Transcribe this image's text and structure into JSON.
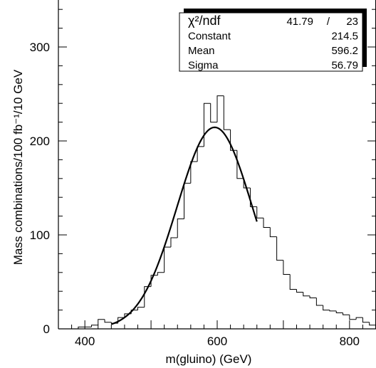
{
  "chart_data": {
    "type": "histogram",
    "title": "",
    "xlabel": "m(gluino) (GeV)",
    "ylabel": "Mass combinations/100 fb⁻¹/10 GeV",
    "xlim": [
      360,
      840
    ],
    "ylim": [
      0,
      350
    ],
    "x_ticks": [
      400,
      600,
      800
    ],
    "y_ticks": [
      0,
      100,
      200,
      300
    ],
    "x_tick_labels": [
      "400",
      "600",
      "800"
    ],
    "y_tick_labels": [
      "0",
      "100",
      "200",
      "300"
    ],
    "grid": false,
    "bin_width": 10,
    "bins_start": [
      360,
      370,
      380,
      390,
      400,
      410,
      420,
      430,
      440,
      450,
      460,
      470,
      480,
      490,
      500,
      510,
      520,
      530,
      540,
      550,
      560,
      570,
      580,
      590,
      600,
      610,
      620,
      630,
      640,
      650,
      660,
      670,
      680,
      690,
      700,
      710,
      720,
      730,
      740,
      750,
      760,
      770,
      780,
      790,
      800,
      810,
      820,
      830
    ],
    "counts": [
      0,
      0,
      0,
      2,
      2,
      4,
      10,
      7,
      6,
      12,
      16,
      20,
      23,
      45,
      57,
      60,
      87,
      97,
      117,
      155,
      178,
      194,
      240,
      220,
      248,
      212,
      190,
      160,
      150,
      130,
      118,
      108,
      98,
      73,
      58,
      42,
      39,
      35,
      33,
      25,
      20,
      19,
      17,
      15,
      10,
      12,
      7,
      4
    ],
    "fit": {
      "type": "gaussian",
      "constant": 214.5,
      "mean": 596.2,
      "sigma": 56.79,
      "x_range": [
        440,
        660
      ]
    },
    "stats_box": {
      "rows": [
        {
          "label": "χ²/ndf",
          "value": "41.79",
          "extra": "/",
          "extra2": "23"
        },
        {
          "label": "Constant",
          "value": "214.5"
        },
        {
          "label": "Mean",
          "value": "596.2"
        },
        {
          "label": "Sigma",
          "value": "56.79"
        }
      ]
    }
  }
}
